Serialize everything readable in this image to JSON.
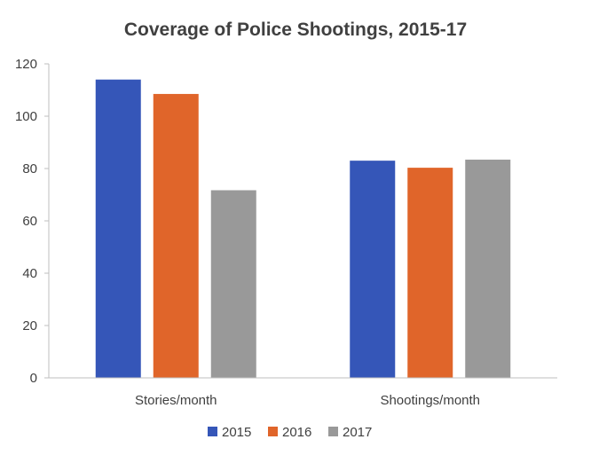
{
  "chart_data": {
    "type": "bar",
    "title": "Coverage of Police Shootings, 2015-17",
    "xlabel": "",
    "ylabel": "",
    "categories": [
      "Stories/month",
      "Shootings/month"
    ],
    "series": [
      {
        "name": "2015",
        "values": [
          114,
          83
        ],
        "color": "#3556b8"
      },
      {
        "name": "2016",
        "values": [
          108.5,
          80.3
        ],
        "color": "#e0652a"
      },
      {
        "name": "2017",
        "values": [
          71.7,
          83.4
        ],
        "color": "#999999"
      }
    ],
    "ylim": [
      0,
      120
    ],
    "yticks": [
      0,
      20,
      40,
      60,
      80,
      100,
      120
    ],
    "grid": false,
    "legend": "bottom"
  }
}
